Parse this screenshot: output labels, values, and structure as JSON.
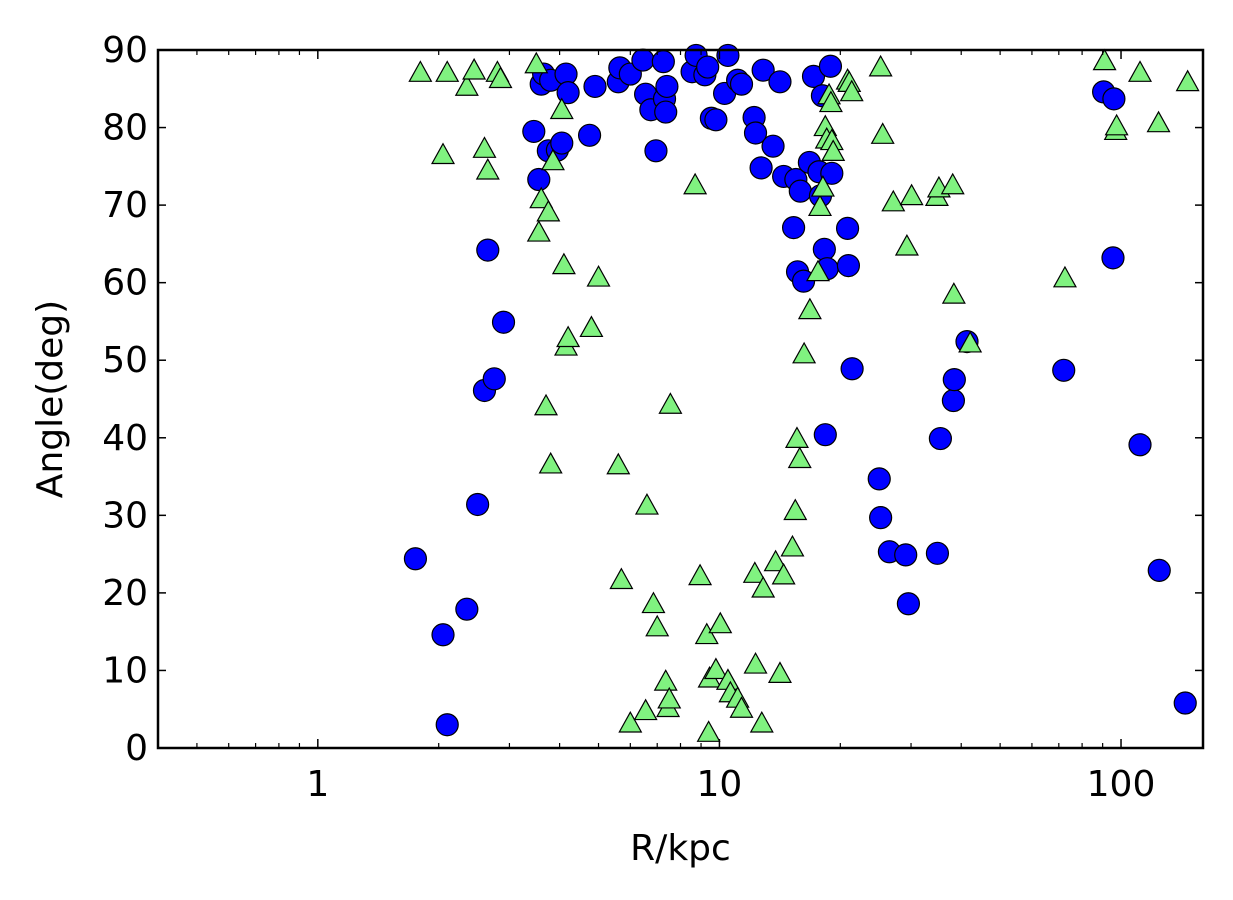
{
  "chart_data": {
    "type": "scatter",
    "xlabel": "R/kpc",
    "ylabel": "Angle(deg)",
    "xscale": "log",
    "xlim": [
      0.4,
      160
    ],
    "ylim": [
      0,
      90
    ],
    "xticks": [
      {
        "value": 1,
        "label": "1"
      },
      {
        "value": 10,
        "label": "10"
      },
      {
        "value": 100,
        "label": "100"
      }
    ],
    "yticks": [
      {
        "value": 0,
        "label": "0"
      },
      {
        "value": 10,
        "label": "10"
      },
      {
        "value": 20,
        "label": "20"
      },
      {
        "value": 30,
        "label": "30"
      },
      {
        "value": 40,
        "label": "40"
      },
      {
        "value": 50,
        "label": "50"
      },
      {
        "value": 60,
        "label": "60"
      },
      {
        "value": 70,
        "label": "70"
      },
      {
        "value": 80,
        "label": "80"
      },
      {
        "value": 90,
        "label": "90"
      }
    ],
    "grid": false,
    "legend": "none",
    "series": [
      {
        "marker": "circle",
        "color": "#0000ff",
        "points": [
          [
            1.75,
            24.4
          ],
          [
            2.05,
            14.6
          ],
          [
            2.1,
            3.0
          ],
          [
            2.35,
            17.9
          ],
          [
            2.5,
            31.4
          ],
          [
            2.6,
            46.1
          ],
          [
            2.65,
            64.2
          ],
          [
            2.75,
            47.6
          ],
          [
            2.9,
            54.9
          ],
          [
            3.45,
            79.5
          ],
          [
            3.55,
            73.3
          ],
          [
            3.6,
            85.6
          ],
          [
            3.65,
            86.9
          ],
          [
            3.75,
            77.0
          ],
          [
            3.8,
            86.1
          ],
          [
            3.95,
            77.1
          ],
          [
            4.05,
            78.0
          ],
          [
            4.15,
            86.9
          ],
          [
            4.2,
            84.5
          ],
          [
            4.75,
            79.0
          ],
          [
            4.9,
            85.3
          ],
          [
            5.6,
            85.9
          ],
          [
            5.65,
            87.7
          ],
          [
            6.0,
            86.9
          ],
          [
            6.45,
            88.7
          ],
          [
            6.55,
            84.3
          ],
          [
            6.75,
            82.3
          ],
          [
            6.95,
            77.0
          ],
          [
            7.25,
            88.5
          ],
          [
            7.3,
            83.7
          ],
          [
            7.35,
            82.0
          ],
          [
            7.4,
            85.3
          ],
          [
            8.55,
            87.2
          ],
          [
            8.75,
            89.3
          ],
          [
            9.2,
            86.8
          ],
          [
            9.35,
            87.8
          ],
          [
            9.55,
            81.2
          ],
          [
            9.8,
            81.0
          ],
          [
            10.3,
            84.4
          ],
          [
            10.5,
            89.3
          ],
          [
            11.1,
            86.1
          ],
          [
            11.35,
            85.6
          ],
          [
            12.2,
            81.3
          ],
          [
            12.3,
            79.3
          ],
          [
            12.7,
            74.8
          ],
          [
            12.85,
            87.4
          ],
          [
            13.6,
            77.6
          ],
          [
            14.15,
            85.9
          ],
          [
            14.45,
            73.7
          ],
          [
            15.3,
            67.1
          ],
          [
            15.5,
            73.3
          ],
          [
            15.65,
            61.4
          ],
          [
            15.9,
            71.8
          ],
          [
            16.2,
            60.2
          ],
          [
            16.75,
            75.5
          ],
          [
            17.15,
            86.6
          ],
          [
            17.7,
            74.3
          ],
          [
            17.85,
            71.2
          ],
          [
            18.05,
            84.1
          ],
          [
            18.25,
            64.3
          ],
          [
            18.35,
            40.4
          ],
          [
            18.55,
            61.8
          ],
          [
            18.9,
            87.9
          ],
          [
            19.05,
            74.1
          ],
          [
            20.85,
            67.0
          ],
          [
            20.95,
            62.2
          ],
          [
            21.4,
            48.9
          ],
          [
            25.0,
            34.7
          ],
          [
            25.2,
            29.7
          ],
          [
            26.5,
            25.3
          ],
          [
            29.1,
            24.9
          ],
          [
            29.55,
            18.6
          ],
          [
            34.9,
            25.1
          ],
          [
            35.5,
            39.9
          ],
          [
            38.25,
            44.8
          ],
          [
            38.45,
            47.5
          ],
          [
            41.35,
            52.4
          ],
          [
            72.0,
            48.7
          ],
          [
            90.5,
            84.6
          ],
          [
            95.5,
            63.2
          ],
          [
            96.0,
            83.7
          ],
          [
            111.5,
            39.1
          ],
          [
            124.5,
            22.9
          ],
          [
            144.5,
            5.8
          ]
        ]
      },
      {
        "marker": "triangle",
        "color": "#80f280",
        "points": [
          [
            1.8,
            87.1
          ],
          [
            2.05,
            76.5
          ],
          [
            2.1,
            87.1
          ],
          [
            2.35,
            85.3
          ],
          [
            2.45,
            87.4
          ],
          [
            2.6,
            77.3
          ],
          [
            2.65,
            74.5
          ],
          [
            2.8,
            87.1
          ],
          [
            2.85,
            86.3
          ],
          [
            3.5,
            88.2
          ],
          [
            3.55,
            66.5
          ],
          [
            3.6,
            70.8
          ],
          [
            3.7,
            44.1
          ],
          [
            3.75,
            69.1
          ],
          [
            3.8,
            36.6
          ],
          [
            3.85,
            75.7
          ],
          [
            4.05,
            82.3
          ],
          [
            4.1,
            62.3
          ],
          [
            4.15,
            51.8
          ],
          [
            4.2,
            52.9
          ],
          [
            4.8,
            54.2
          ],
          [
            5.0,
            60.7
          ],
          [
            5.6,
            36.5
          ],
          [
            5.7,
            21.7
          ],
          [
            6.0,
            3.2
          ],
          [
            6.55,
            4.8
          ],
          [
            6.6,
            31.3
          ],
          [
            6.85,
            18.6
          ],
          [
            7.0,
            15.6
          ],
          [
            7.35,
            8.6
          ],
          [
            7.45,
            5.2
          ],
          [
            7.5,
            6.3
          ],
          [
            7.55,
            44.3
          ],
          [
            8.7,
            72.6
          ],
          [
            8.95,
            22.2
          ],
          [
            9.3,
            14.6
          ],
          [
            9.4,
            2.0
          ],
          [
            9.45,
            9.0
          ],
          [
            9.8,
            10.1
          ],
          [
            10.05,
            16.0
          ],
          [
            10.5,
            8.7
          ],
          [
            10.65,
            7.1
          ],
          [
            11.1,
            6.4
          ],
          [
            11.35,
            5.1
          ],
          [
            12.25,
            22.5
          ],
          [
            12.3,
            10.8
          ],
          [
            12.75,
            3.2
          ],
          [
            12.85,
            20.6
          ],
          [
            13.8,
            24.0
          ],
          [
            14.15,
            9.6
          ],
          [
            14.45,
            22.3
          ],
          [
            15.2,
            25.9
          ],
          [
            15.45,
            30.6
          ],
          [
            15.6,
            39.9
          ],
          [
            15.85,
            37.3
          ],
          [
            16.25,
            50.8
          ],
          [
            16.8,
            56.5
          ],
          [
            17.6,
            61.4
          ],
          [
            17.8,
            69.8
          ],
          [
            18.1,
            72.3
          ],
          [
            18.35,
            80.1
          ],
          [
            18.5,
            78.5
          ],
          [
            18.75,
            84.2
          ],
          [
            18.95,
            83.2
          ],
          [
            19.05,
            78.3
          ],
          [
            19.2,
            76.9
          ],
          [
            20.85,
            86.1
          ],
          [
            21.05,
            85.8
          ],
          [
            21.35,
            84.6
          ],
          [
            25.2,
            87.8
          ],
          [
            25.5,
            79.1
          ],
          [
            27.1,
            70.4
          ],
          [
            29.3,
            64.7
          ],
          [
            30.1,
            71.2
          ],
          [
            34.8,
            71.1
          ],
          [
            35.2,
            72.2
          ],
          [
            38.1,
            72.6
          ],
          [
            38.35,
            58.5
          ],
          [
            42.1,
            52.2
          ],
          [
            72.5,
            60.6
          ],
          [
            91.0,
            88.6
          ],
          [
            97.0,
            79.6
          ],
          [
            97.5,
            80.2
          ],
          [
            111.5,
            87.1
          ],
          [
            124.0,
            80.6
          ],
          [
            146.5,
            85.9
          ]
        ]
      }
    ]
  }
}
